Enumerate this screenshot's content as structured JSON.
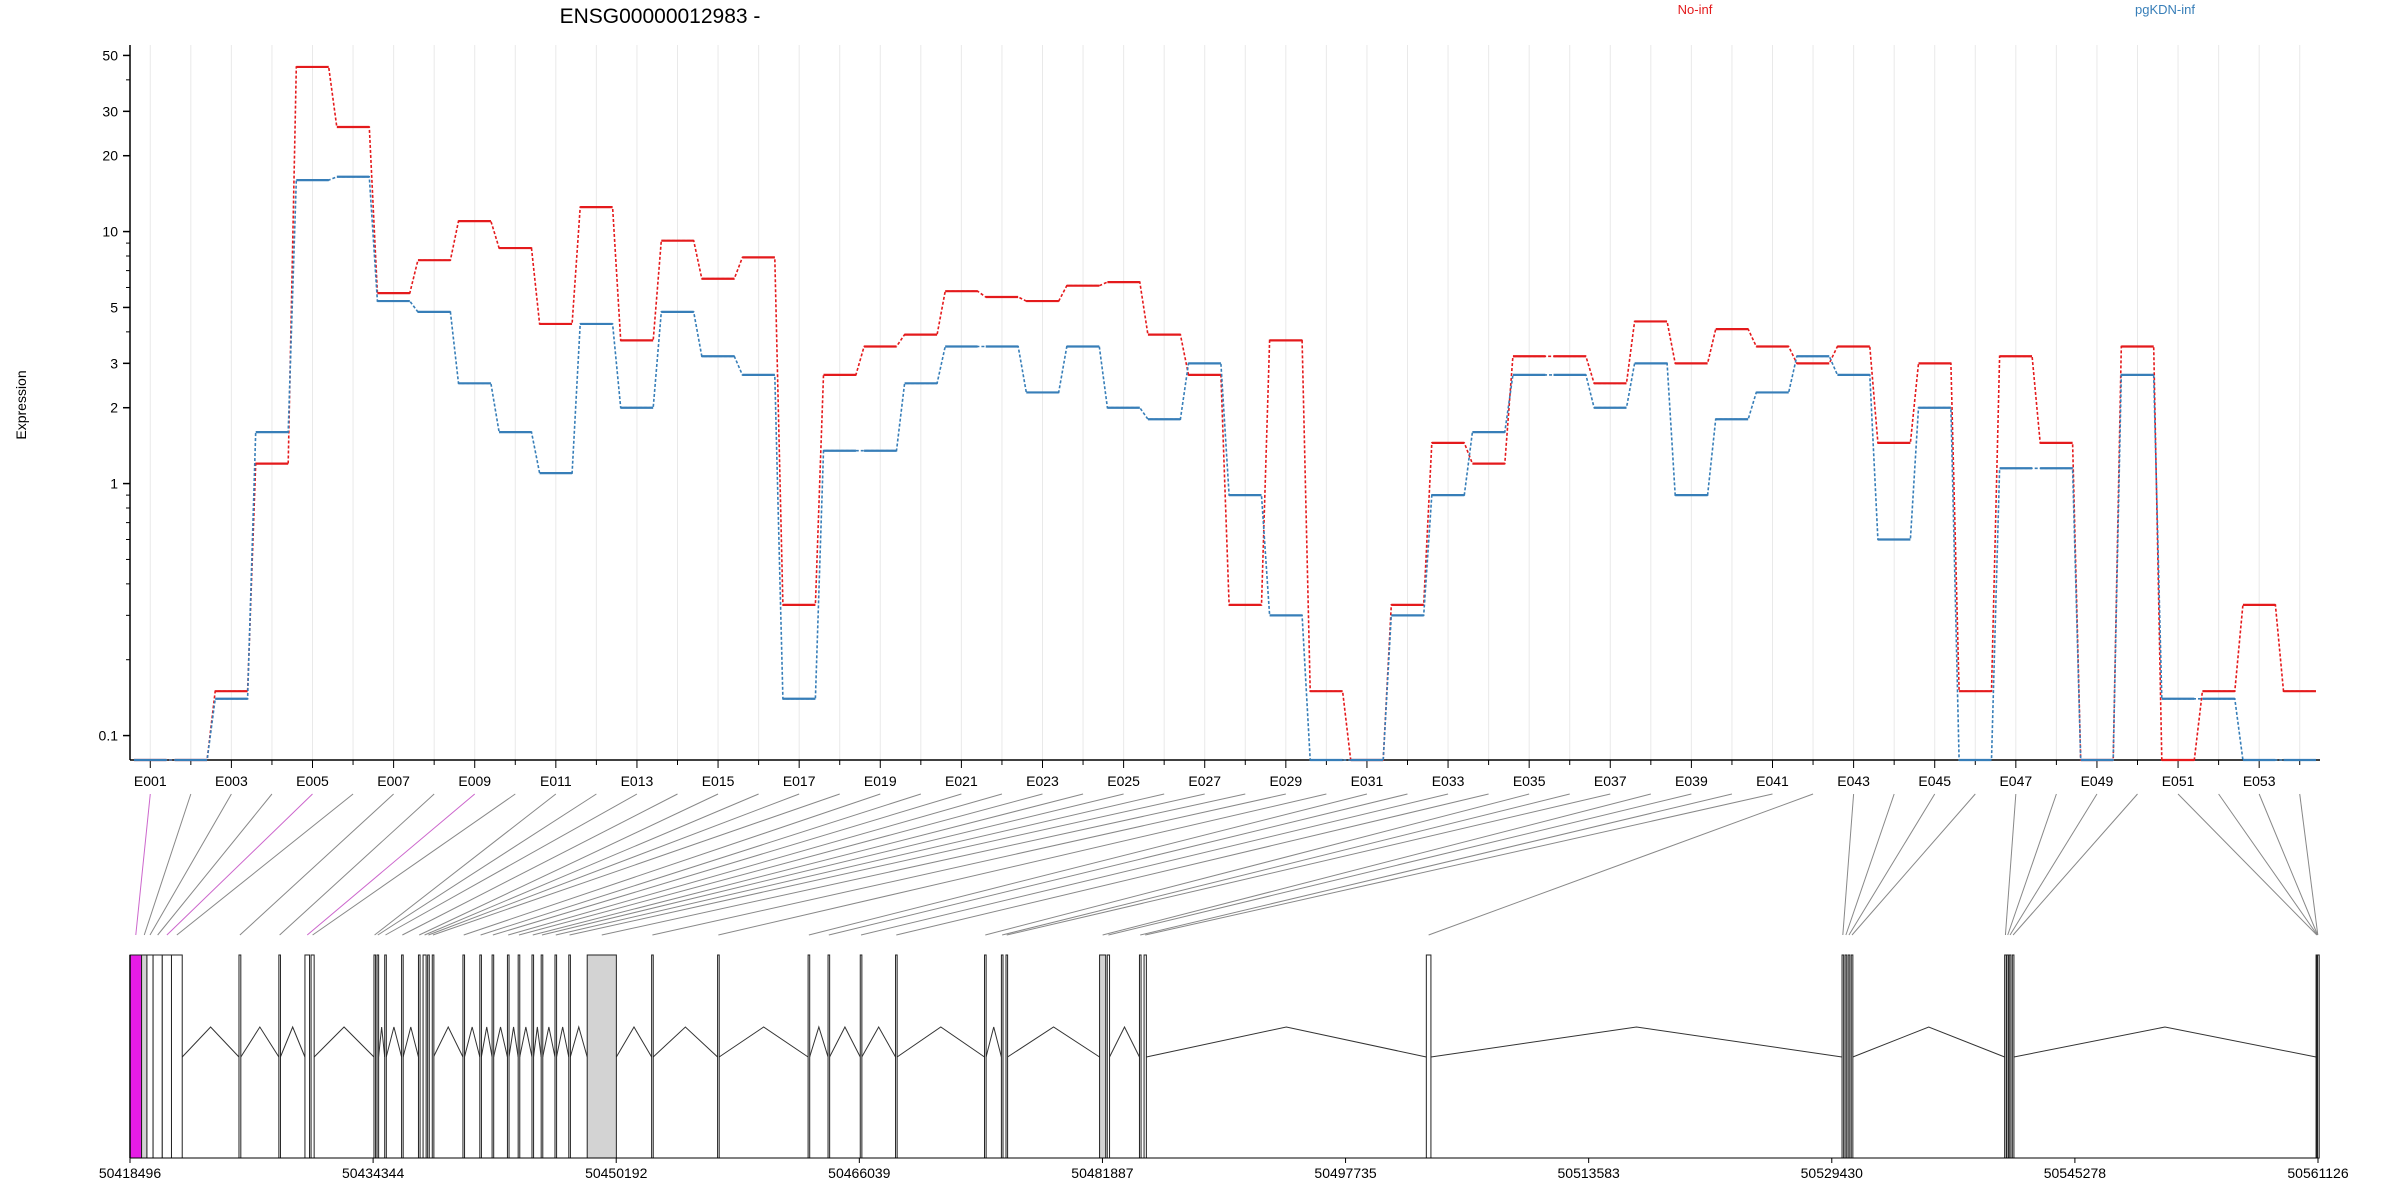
{
  "chart_data": {
    "type": "line",
    "title": "ENSG00000012983 -",
    "ylabel": "Expression",
    "yscale": "log",
    "ylim": [
      0.08,
      55
    ],
    "yticks": [
      0.1,
      1,
      2,
      3,
      5,
      10,
      20,
      30,
      50
    ],
    "ytick_labels": [
      "0.1",
      "1",
      "2",
      "3",
      "5",
      "10",
      "20",
      "30",
      "50"
    ],
    "grid": true,
    "legend_position": "top-right",
    "categories": [
      "E001",
      "E002",
      "E003",
      "E004",
      "E005",
      "E006",
      "E007",
      "E008",
      "E009",
      "E010",
      "E011",
      "E012",
      "E013",
      "E014",
      "E015",
      "E016",
      "E017",
      "E018",
      "E019",
      "E020",
      "E021",
      "E022",
      "E023",
      "E024",
      "E025",
      "E026",
      "E027",
      "E028",
      "E029",
      "E030",
      "E031",
      "E032",
      "E033",
      "E034",
      "E035",
      "E036",
      "E037",
      "E038",
      "E039",
      "E040",
      "E041",
      "E042",
      "E043",
      "E044",
      "E045",
      "E046",
      "E047",
      "E048",
      "E049",
      "E050",
      "E051",
      "E052",
      "E053",
      "E054"
    ],
    "xtick_labels": [
      "E001",
      "E003",
      "E005",
      "E007",
      "E009",
      "E011",
      "E013",
      "E015",
      "E017",
      "E019",
      "E021",
      "E023",
      "E025",
      "E027",
      "E029",
      "E031",
      "E033",
      "E035",
      "E037",
      "E039",
      "E041",
      "E043",
      "E045",
      "E047",
      "E049",
      "E051",
      "E053"
    ],
    "series": [
      {
        "name": "No-inf",
        "color": "#e41a1c",
        "values": [
          0.08,
          0.08,
          0.15,
          1.2,
          45,
          26,
          5.7,
          7.7,
          11,
          8.6,
          4.3,
          12.5,
          3.7,
          9.2,
          6.5,
          7.9,
          0.33,
          2.7,
          3.5,
          3.9,
          5.8,
          5.5,
          5.3,
          6.1,
          6.3,
          3.9,
          2.7,
          0.33,
          3.7,
          0.15,
          0.08,
          0.33,
          1.45,
          1.2,
          3.2,
          3.2,
          2.5,
          4.4,
          3.0,
          4.1,
          3.5,
          3.0,
          3.5,
          1.45,
          3.0,
          0.15,
          3.2,
          1.45,
          0.08,
          3.5,
          0.08,
          0.15,
          0.33,
          0.15
        ]
      },
      {
        "name": "pgKDN-inf",
        "color": "#377eb8",
        "values": [
          0.08,
          0.08,
          0.14,
          1.6,
          16,
          16.5,
          5.3,
          4.8,
          2.5,
          1.6,
          1.1,
          4.3,
          2.0,
          4.8,
          3.2,
          2.7,
          0.14,
          1.35,
          1.35,
          2.5,
          3.5,
          3.5,
          2.3,
          3.5,
          2.0,
          1.8,
          3.0,
          0.9,
          0.3,
          0.08,
          0.08,
          0.3,
          0.9,
          1.6,
          2.7,
          2.7,
          2.0,
          3.0,
          0.9,
          1.8,
          2.3,
          3.2,
          2.7,
          0.6,
          2.0,
          0.08,
          1.15,
          1.15,
          0.08,
          2.7,
          0.14,
          0.14,
          0.08,
          0.08
        ]
      }
    ],
    "gene_model": {
      "start_coordinate": 50418496,
      "end_coordinate": 50561126,
      "coordinate_labels": [
        "50418496",
        "50434344",
        "50450192",
        "50466039",
        "50481887",
        "50497735",
        "50513583",
        "50529430",
        "50545278",
        "50561126"
      ],
      "highlight_color": "#e61ce6",
      "exon_fill": "#d3d3d3"
    }
  }
}
